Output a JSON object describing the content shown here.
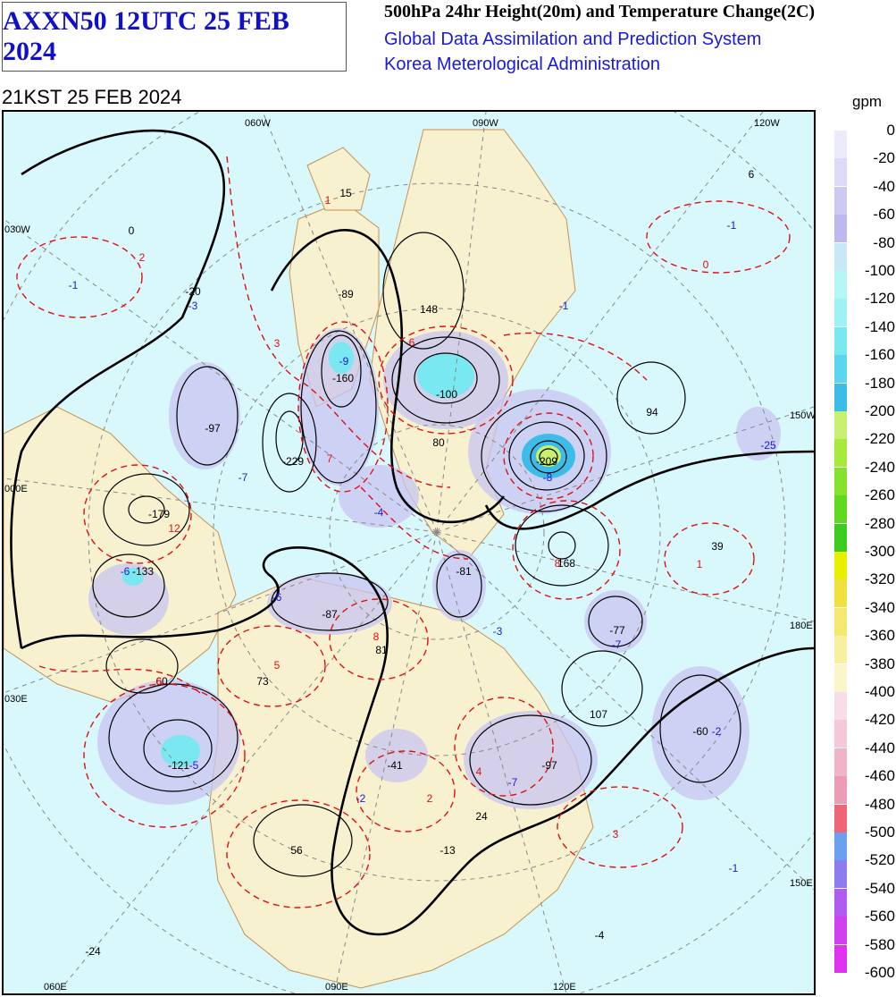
{
  "header": {
    "product_code": "AXXN50 12UTC 25 FEB 2024",
    "title": "500hPa 24hr Height(20m) and Temperature Change(2C)",
    "system": "Global Data Assimilation and Prediction System",
    "agency": "Korea Meterological Administration",
    "valid_time": "21KST 25 FEB 2024"
  },
  "legend": {
    "unit": "gpm",
    "labels": [
      "0",
      "-20",
      "-40",
      "-60",
      "-80",
      "-100",
      "-120",
      "-140",
      "-160",
      "-180",
      "-200",
      "-220",
      "-240",
      "-260",
      "-280",
      "-300",
      "-320",
      "-340",
      "-360",
      "-380",
      "-400",
      "-420",
      "-440",
      "-460",
      "-480",
      "-500",
      "-520",
      "-540",
      "-560",
      "-580",
      "-600"
    ],
    "colors": [
      "#ecebfb",
      "#dcdaf7",
      "#ccc9f2",
      "#bdb9ee",
      "#c8e8f8",
      "#b6f6f8",
      "#9ef1f5",
      "#7ae8f0",
      "#5cd6ee",
      "#3cbce8",
      "#c8f070",
      "#a8ea3c",
      "#84e22a",
      "#60d820",
      "#3ccc20",
      "#e6f000",
      "#f0e040",
      "#f4e870",
      "#f8f0a0",
      "#fbf6c8",
      "#f8dce8",
      "#f4c8d8",
      "#f0b4c8",
      "#ec9cb4",
      "#f06478",
      "#6aa0f0",
      "#8c7cf0",
      "#b05cf0",
      "#d040f0",
      "#e030f0"
    ]
  },
  "map": {
    "longitude_labels_top": [
      "060W",
      "090W",
      "120W"
    ],
    "longitude_labels_bottom": [
      "060E",
      "090E",
      "120E"
    ],
    "longitude_labels_left": [
      "030W",
      "000E",
      "030E"
    ],
    "longitude_labels_right": [
      "150W",
      "180E",
      "150E"
    ],
    "colors": {
      "land": "#f7f1d0",
      "ocean": "#d8f8fc",
      "coast": "#c89050",
      "height_contour": "#000000",
      "temp_contour": "#e01010",
      "grid": "#888888"
    },
    "height_change_labels": [
      {
        "text": "15",
        "color": "black"
      },
      {
        "text": "6",
        "color": "black"
      },
      {
        "text": "0",
        "color": "black"
      },
      {
        "text": "-20",
        "color": "black"
      },
      {
        "text": "-89",
        "color": "black"
      },
      {
        "text": "148",
        "color": "black"
      },
      {
        "text": "-160",
        "color": "black"
      },
      {
        "text": "-100",
        "color": "black"
      },
      {
        "text": "-97",
        "color": "black"
      },
      {
        "text": "-229",
        "color": "black"
      },
      {
        "text": "94",
        "color": "black"
      },
      {
        "text": "-209",
        "color": "black"
      },
      {
        "text": "-179",
        "color": "black"
      },
      {
        "text": "39",
        "color": "black"
      },
      {
        "text": "168",
        "color": "black"
      },
      {
        "text": "-133",
        "color": "black"
      },
      {
        "text": "-87",
        "color": "black"
      },
      {
        "text": "-81",
        "color": "black"
      },
      {
        "text": "81",
        "color": "black"
      },
      {
        "text": "-77",
        "color": "black"
      },
      {
        "text": "60",
        "color": "black"
      },
      {
        "text": "73",
        "color": "black"
      },
      {
        "text": "107",
        "color": "black"
      },
      {
        "text": "-60",
        "color": "black"
      },
      {
        "text": "-121",
        "color": "black"
      },
      {
        "text": "-41",
        "color": "black"
      },
      {
        "text": "-97",
        "color": "black"
      },
      {
        "text": "24",
        "color": "black"
      },
      {
        "text": "56",
        "color": "black"
      },
      {
        "text": "-13",
        "color": "black"
      },
      {
        "text": "-24",
        "color": "black"
      },
      {
        "text": "-4",
        "color": "black"
      },
      {
        "text": "80",
        "color": "black"
      }
    ],
    "temperature_change_labels": [
      {
        "text": "-1",
        "color": "blue"
      },
      {
        "text": "-3",
        "color": "blue"
      },
      {
        "text": "-1",
        "color": "blue"
      },
      {
        "text": "-1",
        "color": "blue"
      },
      {
        "text": "-9",
        "color": "blue"
      },
      {
        "text": "-7",
        "color": "blue"
      },
      {
        "text": "-4",
        "color": "blue"
      },
      {
        "text": "-8",
        "color": "blue"
      },
      {
        "text": "-25",
        "color": "blue"
      },
      {
        "text": "-6",
        "color": "blue"
      },
      {
        "text": "-6",
        "color": "blue"
      },
      {
        "text": "-3",
        "color": "blue"
      },
      {
        "text": "-7",
        "color": "blue"
      },
      {
        "text": "-2",
        "color": "blue"
      },
      {
        "text": "-5",
        "color": "blue"
      },
      {
        "text": "-2",
        "color": "blue"
      },
      {
        "text": "-7",
        "color": "blue"
      },
      {
        "text": "-1",
        "color": "blue"
      },
      {
        "text": "2",
        "color": "red"
      },
      {
        "text": "3",
        "color": "red"
      },
      {
        "text": "6",
        "color": "red"
      },
      {
        "text": "7",
        "color": "red"
      },
      {
        "text": "12",
        "color": "red"
      },
      {
        "text": "1",
        "color": "red"
      },
      {
        "text": "8",
        "color": "red"
      },
      {
        "text": "8",
        "color": "red"
      },
      {
        "text": "6",
        "color": "red"
      },
      {
        "text": "5",
        "color": "red"
      },
      {
        "text": "4",
        "color": "red"
      },
      {
        "text": "2",
        "color": "red"
      },
      {
        "text": "3",
        "color": "red"
      },
      {
        "text": "1",
        "color": "red"
      },
      {
        "text": "0",
        "color": "red"
      }
    ]
  }
}
